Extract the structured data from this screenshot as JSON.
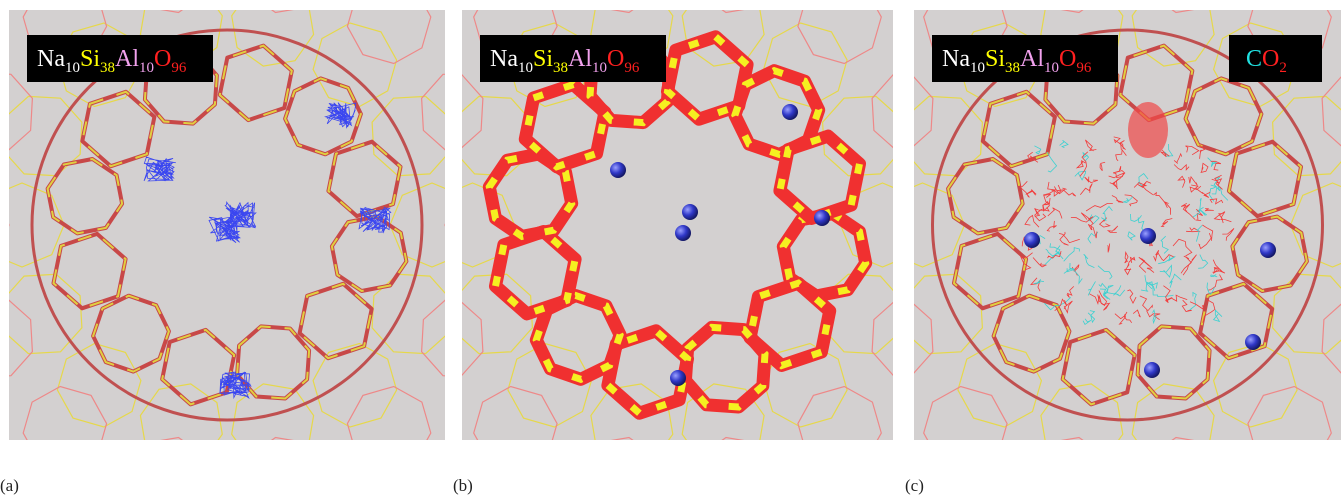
{
  "panels": [
    {
      "label": "(a)",
      "formula": [
        {
          "text": "Na",
          "color": "#ffffff"
        },
        {
          "text": "10",
          "color": "#ffffff",
          "sub": true
        },
        {
          "text": "Si",
          "color": "#ffff00"
        },
        {
          "text": "38",
          "color": "#ffff00",
          "sub": true
        },
        {
          "text": "Al",
          "color": "#f2a2ee"
        },
        {
          "text": "10",
          "color": "#f2a2ee",
          "sub": true
        },
        {
          "text": "O",
          "color": "#ff2020"
        },
        {
          "text": "96",
          "color": "#ff2020",
          "sub": true
        }
      ]
    },
    {
      "label": "(b)",
      "formula": [
        {
          "text": "Na",
          "color": "#ffffff"
        },
        {
          "text": "10",
          "color": "#ffffff",
          "sub": true
        },
        {
          "text": "Si",
          "color": "#ffff00"
        },
        {
          "text": "38",
          "color": "#ffff00",
          "sub": true
        },
        {
          "text": "Al",
          "color": "#f2a2ee"
        },
        {
          "text": "10",
          "color": "#f2a2ee",
          "sub": true
        },
        {
          "text": "O",
          "color": "#ff2020"
        },
        {
          "text": "96",
          "color": "#ff2020",
          "sub": true
        }
      ]
    },
    {
      "label": "(c)",
      "formula": [
        {
          "text": "Na",
          "color": "#ffffff"
        },
        {
          "text": "10",
          "color": "#ffffff",
          "sub": true
        },
        {
          "text": "Si",
          "color": "#ffff00"
        },
        {
          "text": "38",
          "color": "#ffff00",
          "sub": true
        },
        {
          "text": "Al",
          "color": "#f2a2ee"
        },
        {
          "text": "10",
          "color": "#f2a2ee",
          "sub": true
        },
        {
          "text": "O",
          "color": "#ff2020"
        },
        {
          "text": "96",
          "color": "#ff2020",
          "sub": true
        }
      ],
      "guest": [
        {
          "text": "C",
          "color": "#20e0e0"
        },
        {
          "text": "O",
          "color": "#ff2020"
        },
        {
          "text": "2",
          "color": "#ff2020",
          "sub": true
        }
      ]
    }
  ]
}
